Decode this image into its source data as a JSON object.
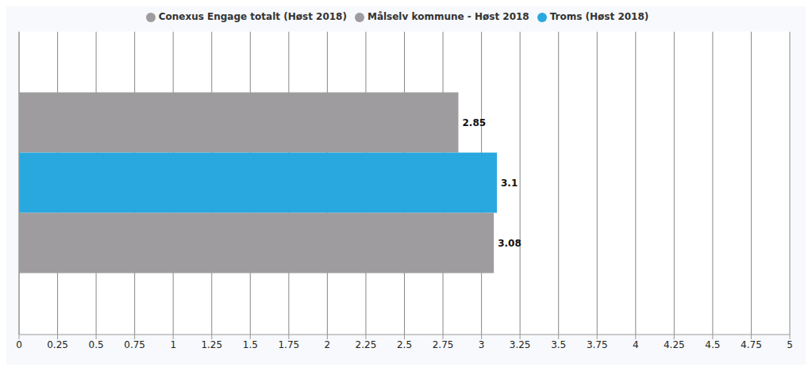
{
  "chart_data": {
    "type": "bar",
    "orientation": "horizontal",
    "categories": [
      null
    ],
    "series": [
      {
        "name": "Målselv kommune - Høst 2018",
        "color": "#9e9c9e",
        "values": [
          2.85
        ]
      },
      {
        "name": "Troms (Høst 2018)",
        "color": "#29a8e0",
        "values": [
          3.1
        ]
      },
      {
        "name": "Conexus Engage totalt (Høst 2018)",
        "color": "#9e9c9e",
        "values": [
          3.08
        ]
      }
    ],
    "xlim": [
      0,
      5
    ],
    "xticks": [
      0,
      0.25,
      0.5,
      0.75,
      1,
      1.25,
      1.5,
      1.75,
      2,
      2.25,
      2.5,
      2.75,
      3,
      3.25,
      3.5,
      3.75,
      4,
      4.25,
      4.5,
      4.75,
      5
    ],
    "grid": true,
    "legend": "top",
    "data_labels": true,
    "tick_labels": "x"
  }
}
